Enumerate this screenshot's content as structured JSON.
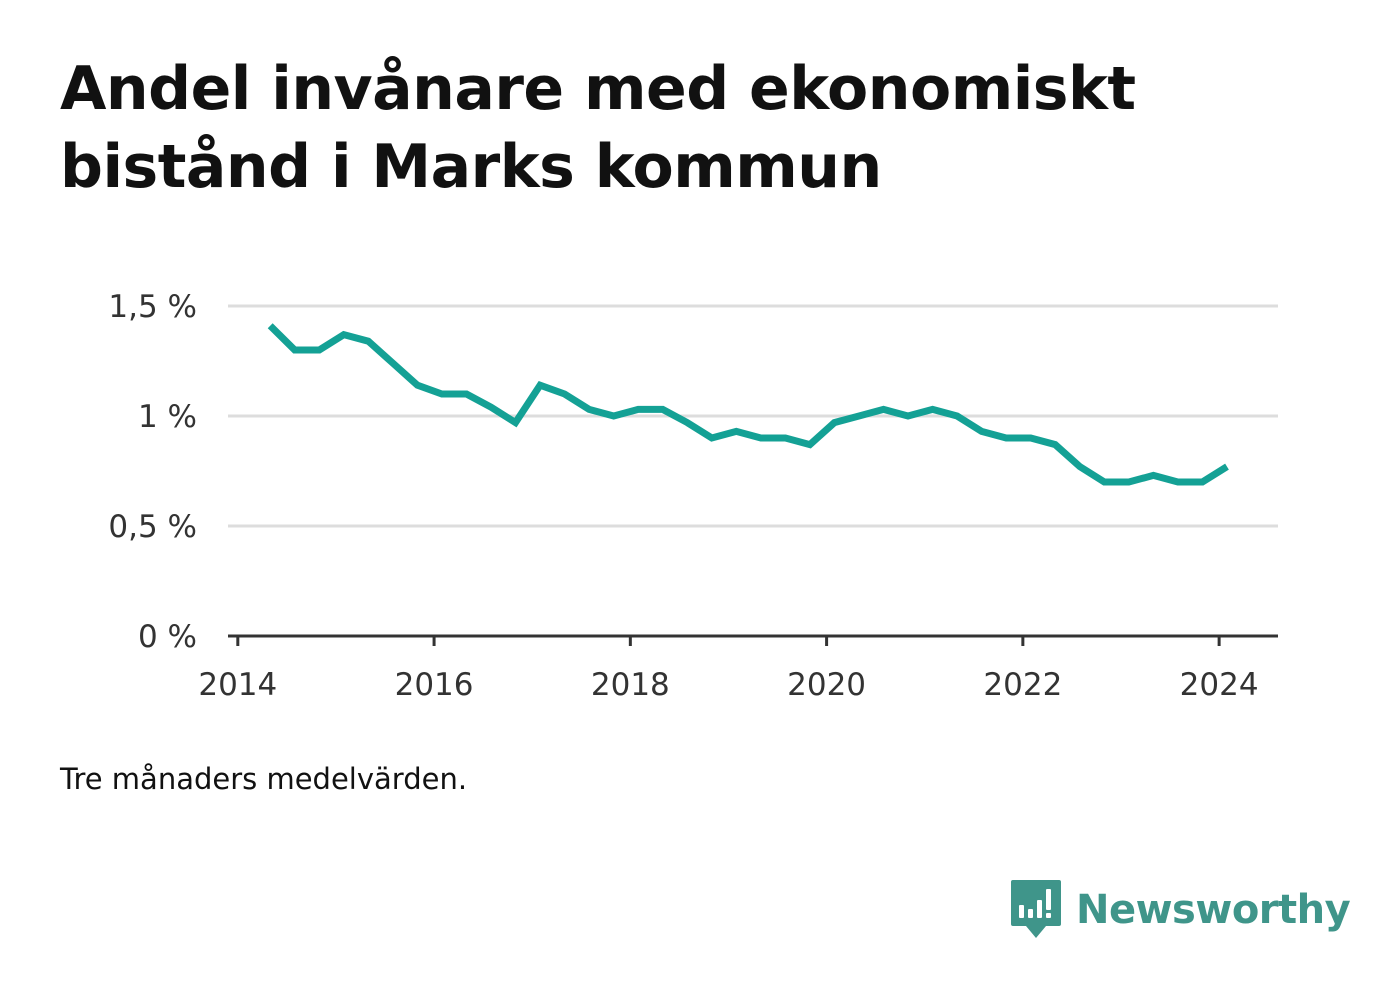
{
  "title": "Andel invånare med ekonomiskt bistånd i Marks kommun",
  "note": "Tre månaders medelvärden.",
  "brand": {
    "name": "Newsworthy",
    "logo_icon": "newsworthy-bar-chart-icon",
    "color": "#3f958a"
  },
  "colors": {
    "line": "#14a195",
    "grid": "#dddddd",
    "axis": "#333333"
  },
  "chart_data": {
    "type": "line",
    "title": "Andel invånare med ekonomiskt bistånd i Marks kommun",
    "xlabel": "",
    "ylabel": "",
    "xlim": [
      2013.9,
      2024.6
    ],
    "ylim": [
      0,
      1.5
    ],
    "y_ticks": [
      {
        "value": 0,
        "label": "0 %"
      },
      {
        "value": 0.5,
        "label": "0,5 %"
      },
      {
        "value": 1,
        "label": "1 %"
      },
      {
        "value": 1.5,
        "label": "1,5 %"
      }
    ],
    "x_ticks": [
      {
        "value": 2014,
        "label": "2014"
      },
      {
        "value": 2016,
        "label": "2016"
      },
      {
        "value": 2018,
        "label": "2018"
      },
      {
        "value": 2020,
        "label": "2020"
      },
      {
        "value": 2022,
        "label": "2022"
      },
      {
        "value": 2024,
        "label": "2024"
      }
    ],
    "grid": true,
    "legend": "none",
    "series": [
      {
        "points": [
          [
            2014.33,
            1.41
          ],
          [
            2014.58,
            1.3
          ],
          [
            2014.83,
            1.3
          ],
          [
            2015.08,
            1.37
          ],
          [
            2015.33,
            1.34
          ],
          [
            2015.58,
            1.24
          ],
          [
            2015.83,
            1.14
          ],
          [
            2016.08,
            1.1
          ],
          [
            2016.33,
            1.1
          ],
          [
            2016.58,
            1.04
          ],
          [
            2016.83,
            0.97
          ],
          [
            2017.08,
            1.14
          ],
          [
            2017.33,
            1.1
          ],
          [
            2017.58,
            1.03
          ],
          [
            2017.83,
            1.0
          ],
          [
            2018.08,
            1.03
          ],
          [
            2018.33,
            1.03
          ],
          [
            2018.58,
            0.97
          ],
          [
            2018.83,
            0.9
          ],
          [
            2019.08,
            0.93
          ],
          [
            2019.33,
            0.9
          ],
          [
            2019.58,
            0.9
          ],
          [
            2019.83,
            0.87
          ],
          [
            2020.08,
            0.97
          ],
          [
            2020.33,
            1.0
          ],
          [
            2020.58,
            1.03
          ],
          [
            2020.83,
            1.0
          ],
          [
            2021.08,
            1.03
          ],
          [
            2021.33,
            1.0
          ],
          [
            2021.58,
            0.93
          ],
          [
            2021.83,
            0.9
          ],
          [
            2022.08,
            0.9
          ],
          [
            2022.33,
            0.87
          ],
          [
            2022.58,
            0.77
          ],
          [
            2022.83,
            0.7
          ],
          [
            2023.08,
            0.7
          ],
          [
            2023.33,
            0.73
          ],
          [
            2023.58,
            0.7
          ],
          [
            2023.83,
            0.7
          ],
          [
            2024.08,
            0.77
          ]
        ]
      }
    ]
  }
}
